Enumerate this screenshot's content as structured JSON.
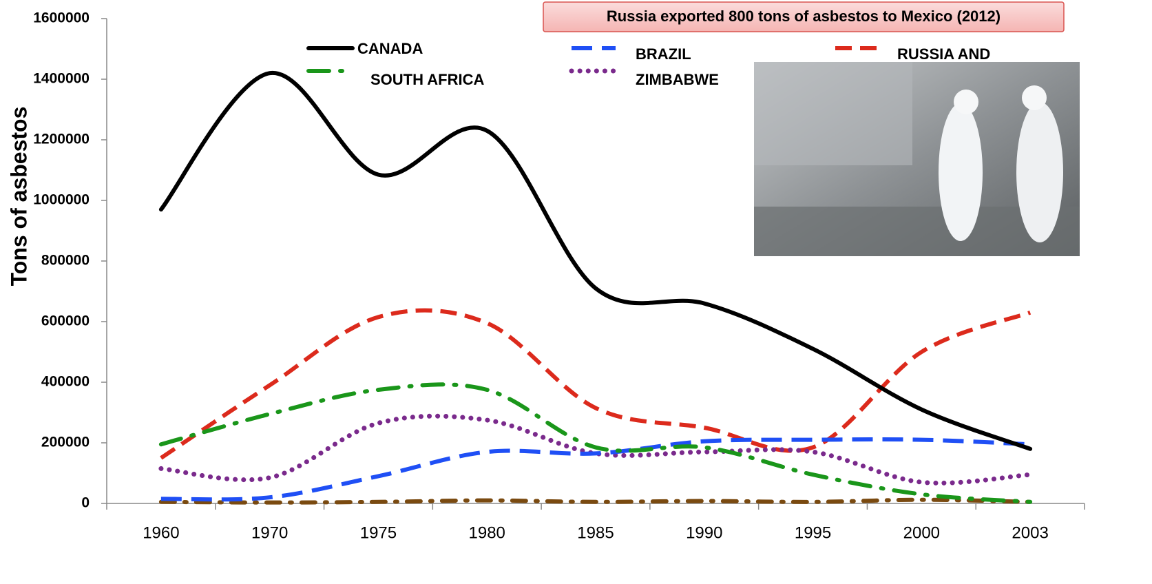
{
  "chart_data": {
    "type": "line",
    "annotation": "Russia exported 800 tons of asbestos to Mexico (2012)",
    "y_label": "Tons of asbestos",
    "categories": [
      "1960",
      "1970",
      "1975",
      "1980",
      "1985",
      "1990",
      "1995",
      "2000",
      "2003"
    ],
    "ylim": [
      0,
      1600000
    ],
    "yticks": [
      0,
      200000,
      400000,
      600000,
      800000,
      1000000,
      1200000,
      1400000,
      1600000
    ],
    "smooth": true,
    "series": [
      {
        "name": "CANADA",
        "color": "#000000",
        "values": [
          970000,
          1420000,
          1085000,
          1230000,
          710000,
          660000,
          510000,
          310000,
          180000
        ]
      },
      {
        "name": "SOUTH AFRICA",
        "color": "#1a961a",
        "values": [
          195000,
          295000,
          375000,
          375000,
          185000,
          185000,
          95000,
          30000,
          5000
        ]
      },
      {
        "name": "BRAZIL",
        "color": "#1f4ff5",
        "values": [
          15000,
          20000,
          90000,
          170000,
          165000,
          205000,
          210000,
          210000,
          195000
        ]
      },
      {
        "name": "ZIMBABWE",
        "color": "#7a2a8c",
        "values": [
          115000,
          85000,
          265000,
          275000,
          165000,
          170000,
          170000,
          70000,
          95000
        ]
      },
      {
        "name": "RUSSIA AND",
        "color": "#dc2a1c",
        "values": [
          150000,
          390000,
          615000,
          595000,
          315000,
          250000,
          185000,
          500000,
          630000
        ]
      },
      {
        "color": "#7a4a10",
        "values": [
          5000,
          3000,
          5000,
          10000,
          5000,
          8000,
          5000,
          12000,
          5000
        ]
      }
    ]
  }
}
